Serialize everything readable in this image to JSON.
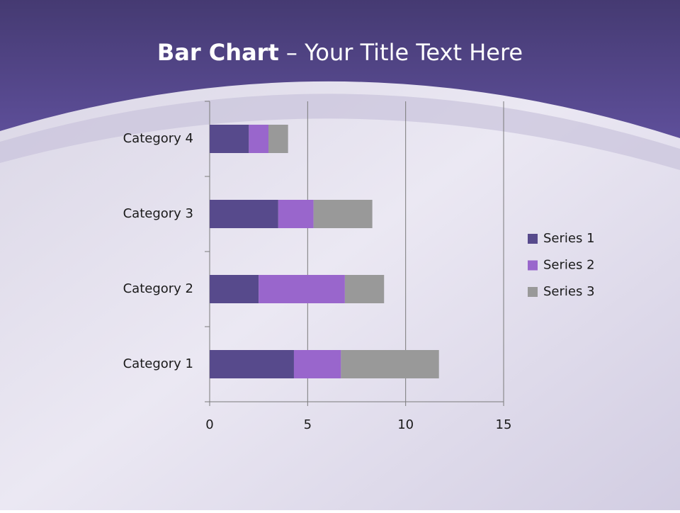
{
  "chart_data": {
    "type": "stacked-barh",
    "title_parts": [
      "Bar Chart",
      " – Your Title Text Here"
    ],
    "categories": [
      "Category 1",
      "Category 2",
      "Category 3",
      "Category 4"
    ],
    "series": [
      {
        "name": "Series 1",
        "color": "#574a8c",
        "values": [
          4.3,
          2.5,
          3.5,
          2
        ]
      },
      {
        "name": "Series 2",
        "color": "#9966cc",
        "values": [
          2.4,
          4.4,
          1.8,
          1
        ]
      },
      {
        "name": "Series 3",
        "color": "#999999",
        "values": [
          5,
          2,
          3,
          1
        ]
      }
    ],
    "xlim": [
      0,
      15
    ],
    "xticks": [
      0,
      5,
      10,
      15
    ],
    "grid": true,
    "legend": "right"
  }
}
